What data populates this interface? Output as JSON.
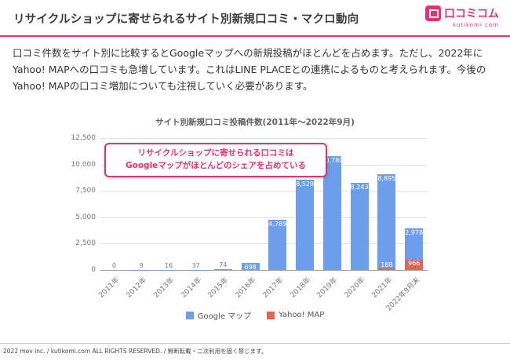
{
  "header": {
    "title": "リサイクルショップに寄せられるサイト別新規口コミ・マクロ動向",
    "logo": {
      "icon": "kutikomi-logo-icon",
      "text": "口コミコム",
      "subtext": "kutikomi com"
    }
  },
  "intro": {
    "text": "口コミ件数をサイト別に比較するとGoogleマップへの新規投稿がほとんどを占めます。ただし、2022年にYahoo! MAPへの口コミも急増しています。これはLINE PLACEとの連携によるものと考えられます。今後のYahoo! MAPの口コミ増加についても注視していく必要があります。"
  },
  "callout": {
    "line1": "リサイクルショップに寄せられる口コミは",
    "line2": "Googleマップがほとんどのシェアを占めている"
  },
  "chart_data": {
    "type": "bar",
    "stacked": true,
    "title": "サイト別新規口コミ投稿件数(2011年〜2022年9月)",
    "categories": [
      "2011年",
      "2012年",
      "2013年",
      "2014年",
      "2015年",
      "2016年",
      "2017年",
      "2018年",
      "2019年",
      "2020年",
      "2021年",
      "2022年9月末"
    ],
    "series": [
      {
        "name": "Google マップ",
        "color": "#6d9eeb",
        "values": [
          0,
          9,
          16,
          37,
          74,
          698,
          4789,
          8529,
          10780,
          8243,
          8895,
          2978
        ]
      },
      {
        "name": "Yahoo! MAP",
        "color": "#e06651",
        "values": [
          0,
          0,
          0,
          0,
          0,
          0,
          0,
          0,
          0,
          0,
          188,
          966
        ]
      }
    ],
    "ylim": [
      0,
      12500
    ],
    "ytick_values": [
      0,
      2500,
      5000,
      7500,
      10000,
      12500
    ],
    "grid": true,
    "legend_position": "bottom"
  },
  "footer": {
    "text": "2022 mov inc. / kutikomi.com ALL RIGHTS RESERVED. / 無断転載・二次利用を固く禁じます。"
  },
  "colors": {
    "accent_pink": "#e5326e",
    "google_blue": "#6d9eeb",
    "yahoo_red": "#e06651",
    "text_dark": "#3c3c3c",
    "axis_gray": "#757575"
  }
}
